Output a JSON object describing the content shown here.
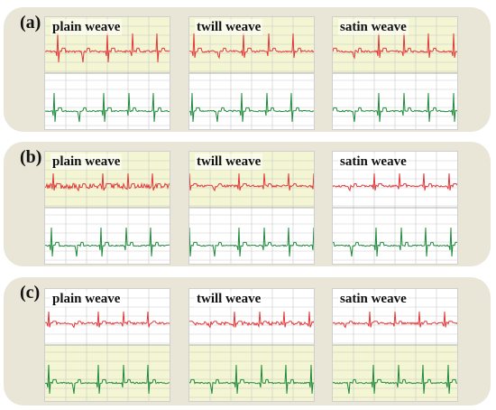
{
  "panels": [
    {
      "label": "(a)",
      "plots": [
        {
          "name": "plain weave",
          "top_band": "yellow"
        },
        {
          "name": "twill weave",
          "top_band": "yellow"
        },
        {
          "name": "satin weave",
          "top_band": "yellow"
        }
      ]
    },
    {
      "label": "(b)",
      "plots": [
        {
          "name": "plain weave",
          "top_band": "yellow"
        },
        {
          "name": "twill weave",
          "top_band": "yellow"
        },
        {
          "name": "satin weave",
          "top_band": "white"
        }
      ]
    },
    {
      "label": "(c)",
      "plots": [
        {
          "name": "plain weave",
          "top_band": "white"
        },
        {
          "name": "twill weave",
          "top_band": "white"
        },
        {
          "name": "satin weave",
          "top_band": "white"
        }
      ]
    }
  ],
  "colors": {
    "panel_bg": "#e9e6d8",
    "grid_yellow_bg": "#f3f5d3",
    "grid_line": "#c9c9c9",
    "trace_red": "#e2383a",
    "trace_green": "#1f8a3c"
  }
}
